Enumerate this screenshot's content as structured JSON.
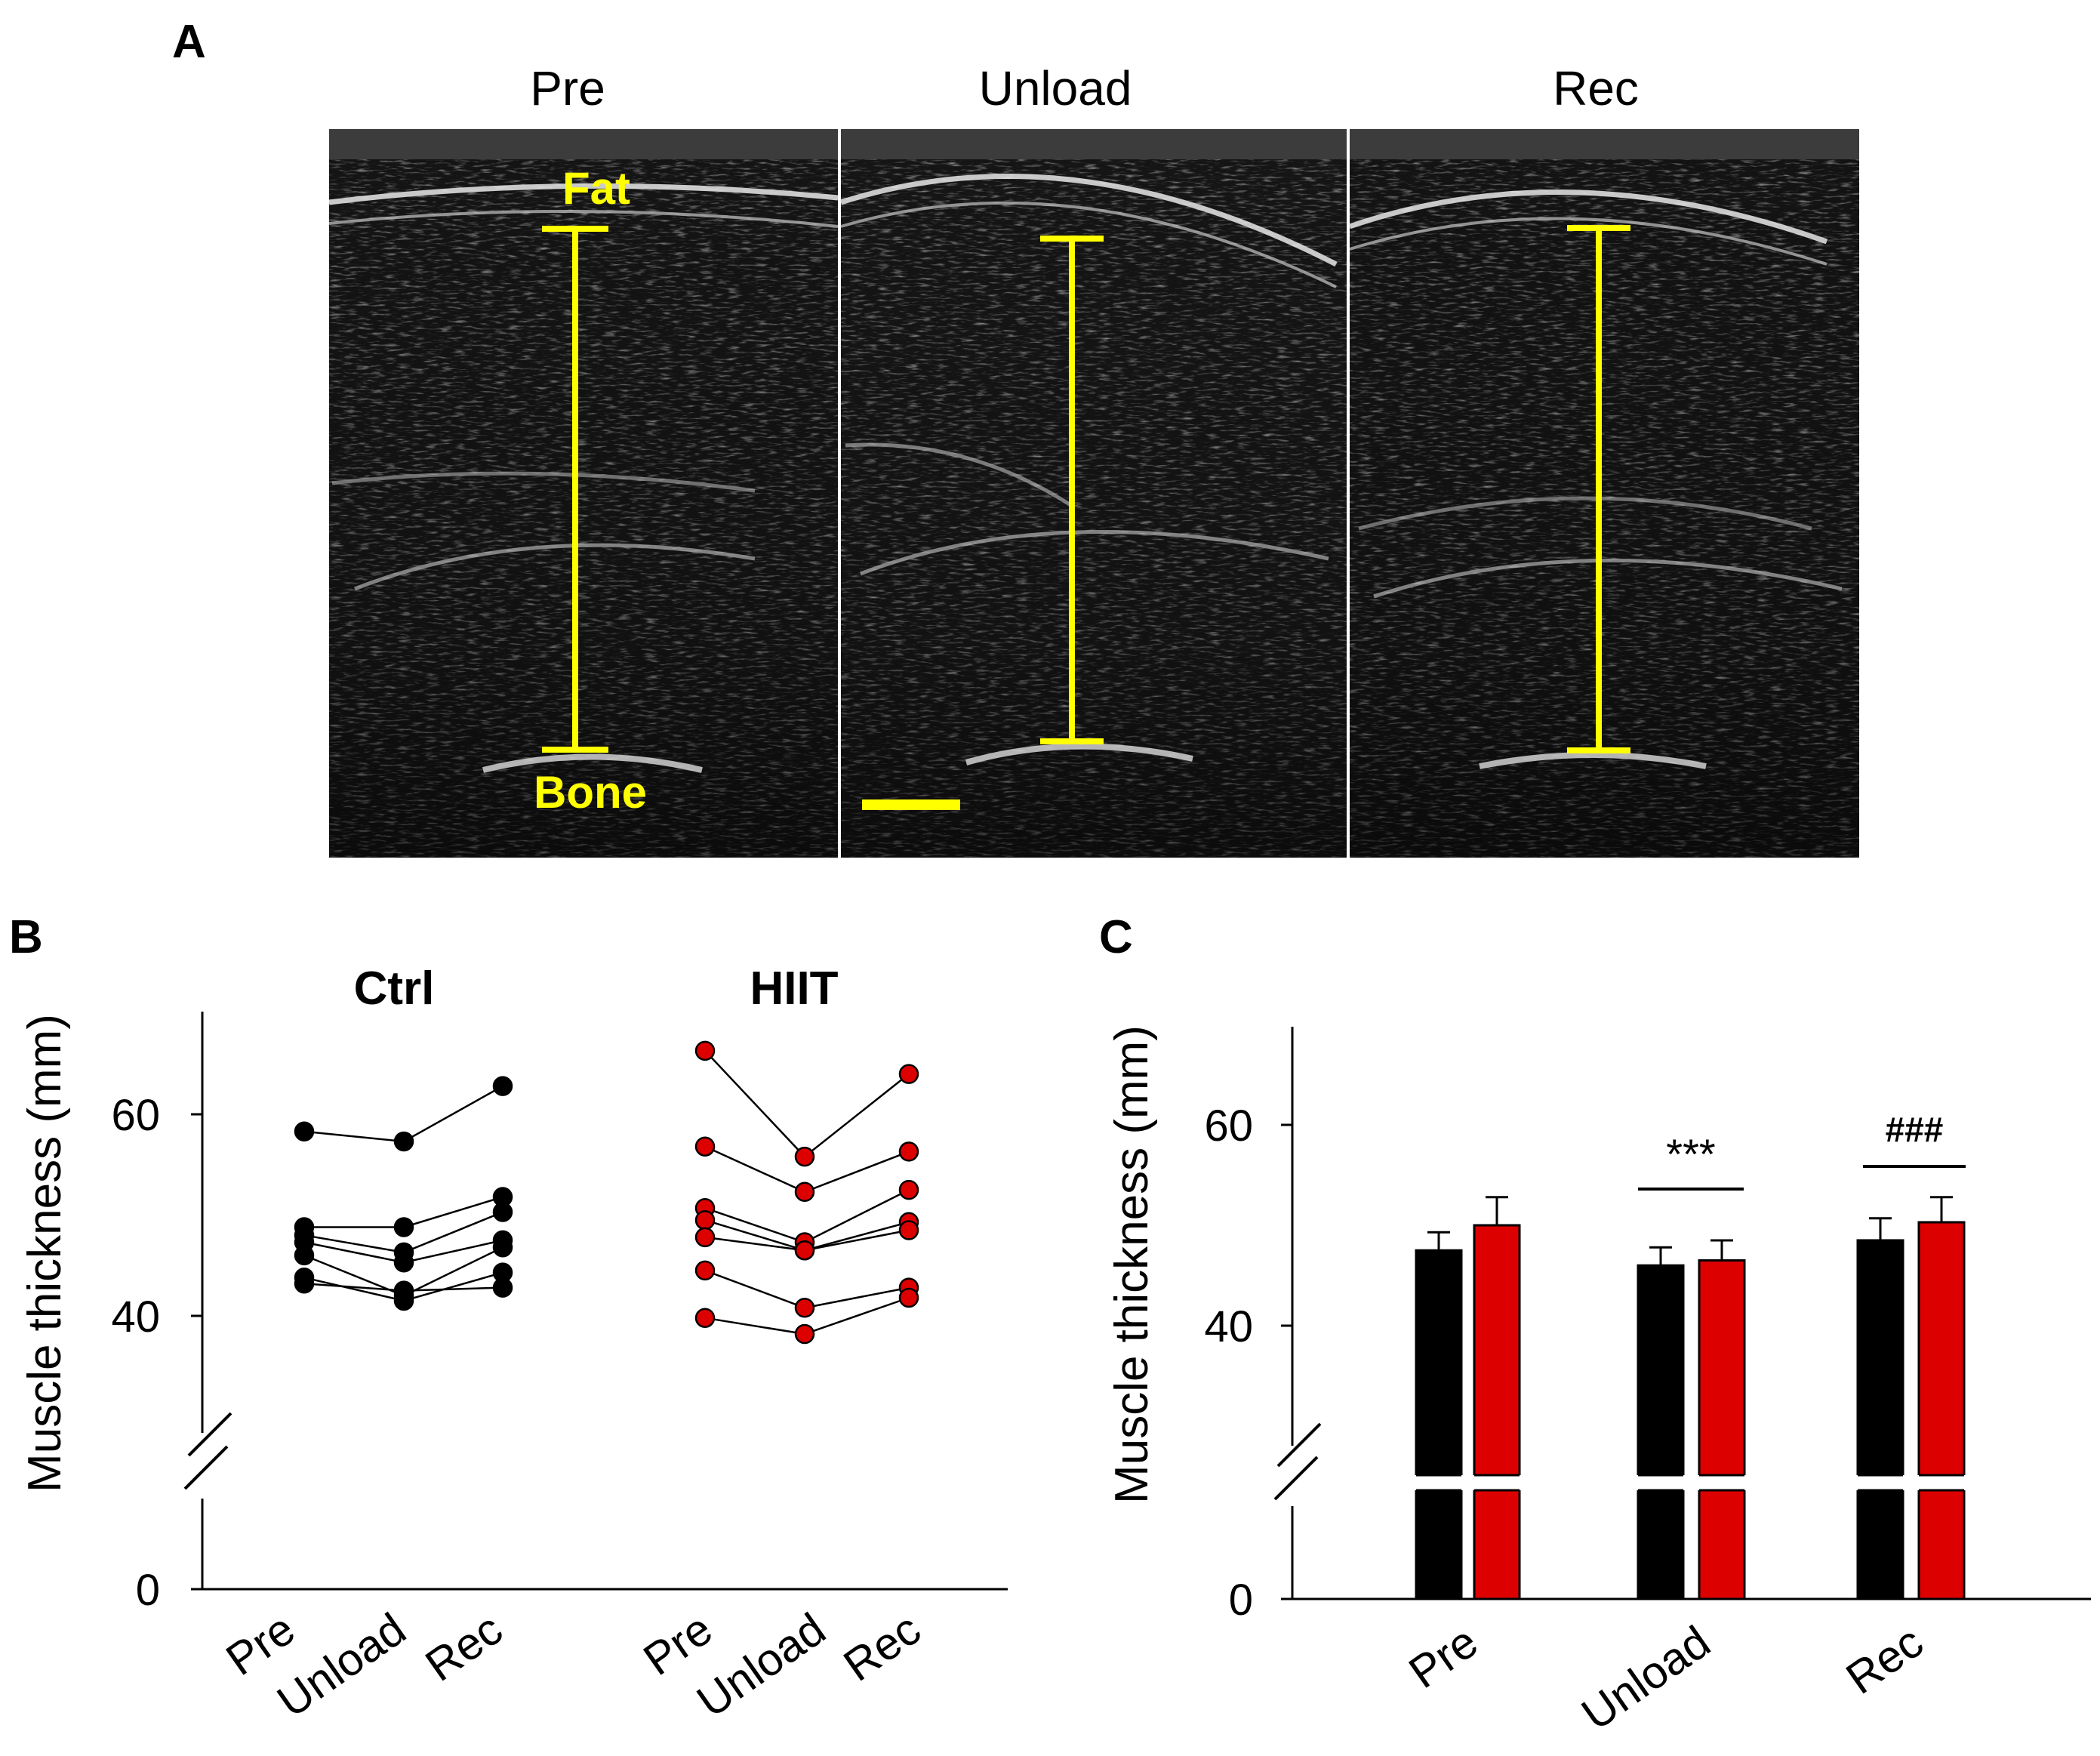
{
  "panel_a": {
    "letter": "A",
    "titles": [
      "Pre",
      "Unload",
      "Rec"
    ],
    "fat_label": "Fat",
    "bone_label": "Bone",
    "annotation_color": "#ffff00"
  },
  "chart_data": [
    {
      "panel": "B",
      "type": "line",
      "ylabel": "Muscle thickness (mm)",
      "yticks": [
        0,
        40,
        60
      ],
      "axis_break": true,
      "x": [
        "Pre",
        "Unload",
        "Rec"
      ],
      "groups": [
        {
          "title": "Ctrl",
          "color": "#000000",
          "subjects": [
            [
              58.3,
              57.3,
              62.8
            ],
            [
              48.8,
              48.8,
              51.8
            ],
            [
              48.0,
              46.3,
              50.3
            ],
            [
              47.3,
              45.3,
              47.5
            ],
            [
              46.0,
              42.0,
              46.8
            ],
            [
              43.8,
              41.5,
              44.3
            ],
            [
              43.2,
              42.5,
              42.8
            ]
          ]
        },
        {
          "title": "HIIT",
          "color": "#dd0000",
          "subjects": [
            [
              66.3,
              55.8,
              64.0
            ],
            [
              56.8,
              52.3,
              56.3
            ],
            [
              50.7,
              47.3,
              52.5
            ],
            [
              49.5,
              46.5,
              49.3
            ],
            [
              47.8,
              46.5,
              48.5
            ],
            [
              44.5,
              40.8,
              42.8
            ],
            [
              39.8,
              38.2,
              41.8
            ]
          ]
        }
      ]
    },
    {
      "panel": "C",
      "type": "bar",
      "ylabel": "Muscle thickness (mm)",
      "yticks": [
        0,
        40,
        60
      ],
      "axis_break": true,
      "categories": [
        "Pre",
        "Unload",
        "Rec"
      ],
      "series": [
        {
          "color": "#000000",
          "values": [
            47.5,
            46.0,
            48.5
          ],
          "errors": [
            1.8,
            1.8,
            2.2
          ]
        },
        {
          "color": "#dd0000",
          "values": [
            50.0,
            46.5,
            50.3
          ],
          "errors": [
            2.8,
            2.0,
            2.5
          ]
        }
      ],
      "annotations": [
        {
          "category": "Unload",
          "text": "***"
        },
        {
          "category": "Rec",
          "text": "###"
        }
      ]
    }
  ]
}
